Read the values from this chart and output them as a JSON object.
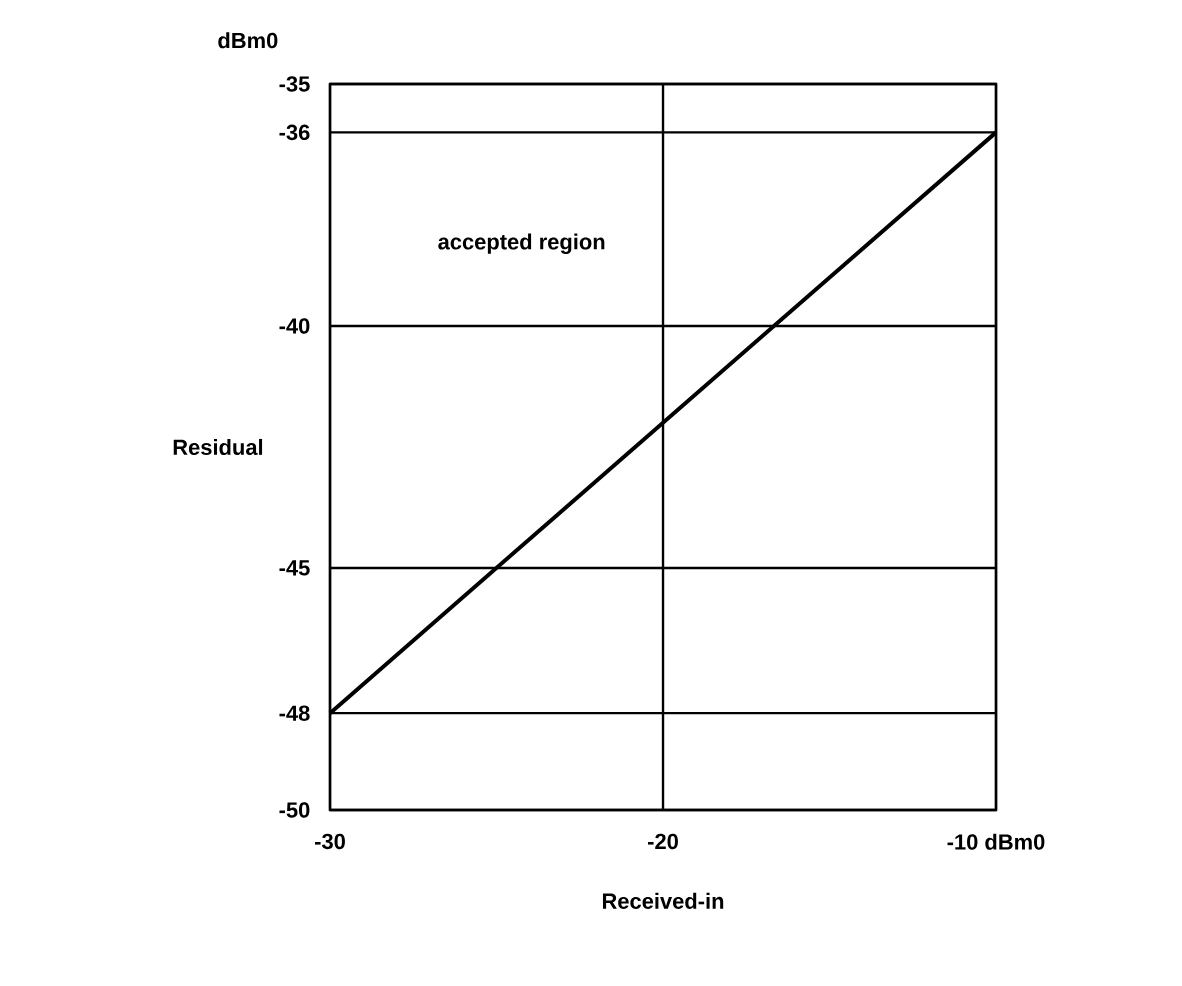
{
  "chart_data": {
    "type": "line",
    "x": [
      -30,
      -10
    ],
    "series": [
      {
        "color": "#000000",
        "values": [
          -48,
          -36
        ]
      }
    ],
    "xlabel": "Received-in",
    "ylabel": "Residual",
    "annotations": [
      "dBm0",
      "accepted region"
    ],
    "xlim": [
      -30,
      -10
    ],
    "ylim": [
      -50,
      -35
    ],
    "xticks": [
      -30,
      -20,
      {
        "value": -10,
        "label": "-10 dBm0"
      }
    ],
    "yticks": [
      -35,
      -36,
      -40,
      -45,
      -48,
      -50
    ],
    "grid": true,
    "marker": "none",
    "line_style": "solid"
  }
}
